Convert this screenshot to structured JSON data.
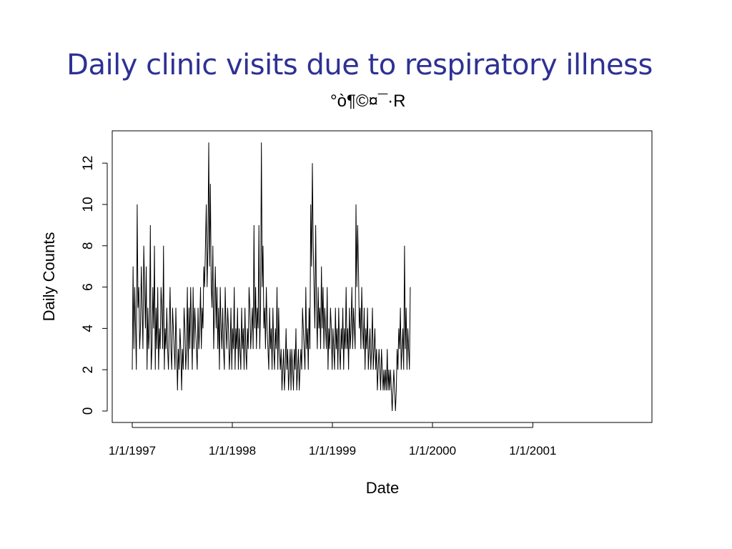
{
  "slide": {
    "title": "Daily clinic visits due to respiratory illness",
    "subtitle": "°ò¶©¤¯·R"
  },
  "chart_data": {
    "type": "line",
    "xlabel": "Date",
    "ylabel": "Daily Counts",
    "ylim": [
      -0.5,
      13.5
    ],
    "y_ticks": [
      "0",
      "2",
      "4",
      "6",
      "8",
      "10",
      "12"
    ],
    "x_range": [
      "1997-01-01",
      "2001-12-31"
    ],
    "x_ticks": [
      "1/1/1997",
      "1/1/1998",
      "1/1/1999",
      "1/1/2000",
      "1/1/2001"
    ],
    "line_color": "#000000",
    "frame": "box",
    "series": [
      {
        "x_start": "1997-01-01",
        "step": "3 days",
        "values": [
          2,
          7,
          3,
          6,
          4,
          2,
          10,
          5,
          6,
          3,
          4,
          7,
          5,
          3,
          8,
          6,
          4,
          7,
          2,
          5,
          3,
          4,
          9,
          2,
          3,
          6,
          4,
          8,
          2,
          5,
          3,
          6,
          2,
          4,
          3,
          6,
          5,
          3,
          8,
          2,
          4,
          3,
          5,
          3,
          2,
          4,
          6,
          3,
          2,
          5,
          4,
          3,
          2,
          5,
          3,
          1,
          3,
          2,
          4,
          3,
          1,
          3,
          2,
          5,
          4,
          2,
          3,
          6,
          2,
          5,
          3,
          6,
          4,
          2,
          6,
          3,
          5,
          4,
          3,
          2,
          5,
          3,
          4,
          6,
          3,
          5,
          4,
          7,
          6,
          8,
          10,
          6,
          8,
          13,
          7,
          11,
          6,
          5,
          8,
          3,
          5,
          7,
          4,
          6,
          3,
          5,
          2,
          6,
          4,
          3,
          5,
          3,
          2,
          6,
          4,
          3,
          5,
          4,
          2,
          3,
          5,
          2,
          4,
          3,
          6,
          2,
          4,
          3,
          5,
          2,
          4,
          3,
          2,
          5,
          3,
          4,
          2,
          5,
          3,
          2,
          4,
          3,
          6,
          5,
          3,
          4,
          5,
          3,
          9,
          4,
          6,
          3,
          5,
          4,
          9,
          3,
          5,
          13,
          6,
          8,
          4,
          5,
          3,
          6,
          4,
          3,
          2,
          5,
          3,
          4,
          2,
          5,
          3,
          2,
          4,
          3,
          6,
          2,
          5,
          3,
          2,
          3,
          1,
          2,
          3,
          1,
          2,
          4,
          2,
          3,
          1,
          2,
          3,
          1,
          3,
          2,
          1,
          3,
          2,
          4,
          1,
          2,
          3,
          1,
          2,
          3,
          2,
          5,
          4,
          3,
          2,
          6,
          3,
          4,
          2,
          5,
          3,
          10,
          7,
          12,
          8,
          6,
          4,
          9,
          5,
          3,
          6,
          4,
          5,
          3,
          7,
          4,
          6,
          3,
          5,
          4,
          3,
          6,
          2,
          4,
          3,
          5,
          4,
          2,
          4,
          3,
          2,
          5,
          3,
          4,
          2,
          5,
          3,
          2,
          4,
          3,
          5,
          2,
          4,
          3,
          6,
          3,
          4,
          2,
          5,
          3,
          4,
          6,
          3,
          5,
          4,
          3,
          10,
          6,
          9,
          7,
          4,
          5,
          3,
          6,
          4,
          3,
          5,
          2,
          4,
          3,
          5,
          2,
          3,
          4,
          2,
          3,
          5,
          2,
          3,
          4,
          2,
          3,
          1,
          2,
          3,
          2,
          1,
          3,
          2,
          1,
          2,
          1,
          2,
          1,
          3,
          1,
          2,
          1,
          2,
          1,
          0,
          1,
          2,
          1,
          0,
          1,
          3,
          2,
          4,
          3,
          5,
          2,
          3,
          4,
          2,
          8,
          3,
          5,
          2,
          4,
          3,
          2,
          6
        ]
      }
    ]
  }
}
